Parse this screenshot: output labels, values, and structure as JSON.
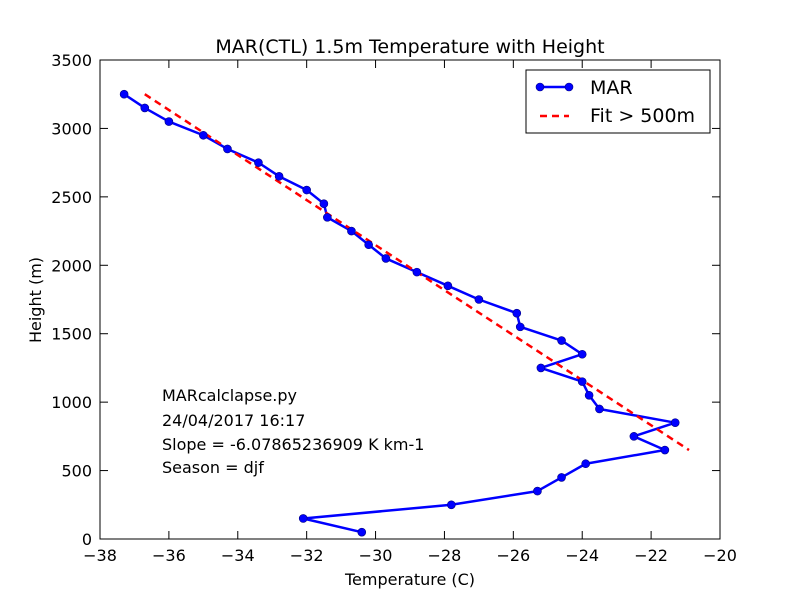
{
  "chart_data": {
    "type": "line",
    "title": "MAR(CTL) 1.5m Temperature with Height",
    "xlabel": "Temperature (C)",
    "ylabel": "Height (m)",
    "xlim": [
      -38,
      -20
    ],
    "ylim": [
      0,
      3500
    ],
    "xticks": [
      -38,
      -36,
      -34,
      -32,
      -30,
      -28,
      -26,
      -24,
      -22,
      -20
    ],
    "xtick_labels": [
      "−38",
      "−36",
      "−34",
      "−32",
      "−30",
      "−28",
      "−26",
      "−24",
      "−22",
      "−20"
    ],
    "yticks": [
      0,
      500,
      1000,
      1500,
      2000,
      2500,
      3000,
      3500
    ],
    "ytick_labels": [
      "0",
      "500",
      "1000",
      "1500",
      "2000",
      "2500",
      "3000",
      "3500"
    ],
    "grid": false,
    "legend_position": "top-right",
    "series": [
      {
        "name": "MAR",
        "style": "solid-markers",
        "color": "#0000ff",
        "points": [
          [
            -30.4,
            50
          ],
          [
            -32.1,
            150
          ],
          [
            -27.8,
            250
          ],
          [
            -25.3,
            350
          ],
          [
            -24.6,
            450
          ],
          [
            -23.9,
            550
          ],
          [
            -21.6,
            650
          ],
          [
            -22.5,
            750
          ],
          [
            -21.3,
            850
          ],
          [
            -23.5,
            950
          ],
          [
            -23.8,
            1050
          ],
          [
            -24.0,
            1150
          ],
          [
            -25.2,
            1250
          ],
          [
            -24.0,
            1350
          ],
          [
            -24.6,
            1450
          ],
          [
            -25.8,
            1550
          ],
          [
            -25.9,
            1650
          ],
          [
            -27.0,
            1750
          ],
          [
            -27.9,
            1850
          ],
          [
            -28.8,
            1950
          ],
          [
            -29.7,
            2050
          ],
          [
            -30.2,
            2150
          ],
          [
            -30.7,
            2250
          ],
          [
            -31.4,
            2350
          ],
          [
            -31.5,
            2450
          ],
          [
            -32.0,
            2550
          ],
          [
            -32.8,
            2650
          ],
          [
            -33.4,
            2750
          ],
          [
            -34.3,
            2850
          ],
          [
            -35.0,
            2950
          ],
          [
            -36.0,
            3050
          ],
          [
            -36.7,
            3150
          ],
          [
            -37.3,
            3250
          ]
        ]
      },
      {
        "name": "Fit > 500m",
        "style": "dashed",
        "color": "#ff0000",
        "points": [
          [
            -36.7,
            3250
          ],
          [
            -20.9,
            650
          ]
        ]
      }
    ],
    "annotations": [
      "MARcalclapse.py",
      "24/04/2017 16:17",
      "Slope = -6.07865236909 K km-1",
      "Season  = djf"
    ]
  }
}
